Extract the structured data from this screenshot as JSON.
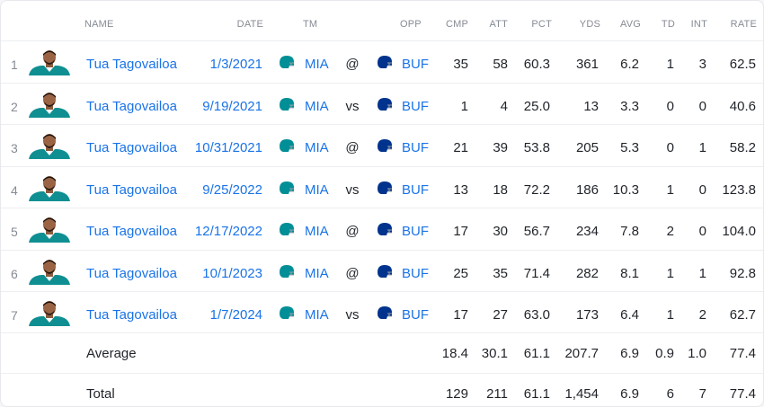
{
  "headers": {
    "name": "NAME",
    "date": "DATE",
    "tm": "TM",
    "opp": "OPP",
    "cmp": "CMP",
    "att": "ATT",
    "pct": "PCT",
    "yds": "YDS",
    "avg": "AVG",
    "td": "TD",
    "int": "INT",
    "rate": "RATE"
  },
  "colors": {
    "link": "#1a73e8",
    "mia": "#008e97",
    "buf": "#00338d"
  },
  "icons": {
    "player": "player-headshot-icon",
    "mia": "dolphins-helmet-icon",
    "buf": "bills-helmet-icon"
  },
  "rows": [
    {
      "rank": "1",
      "name": "Tua Tagovailoa",
      "date": "1/3/2021",
      "tm": "MIA",
      "loc": "@",
      "opp": "BUF",
      "cmp": "35",
      "att": "58",
      "pct": "60.3",
      "yds": "361",
      "avg": "6.2",
      "td": "1",
      "int": "3",
      "rate": "62.5"
    },
    {
      "rank": "2",
      "name": "Tua Tagovailoa",
      "date": "9/19/2021",
      "tm": "MIA",
      "loc": "vs",
      "opp": "BUF",
      "cmp": "1",
      "att": "4",
      "pct": "25.0",
      "yds": "13",
      "avg": "3.3",
      "td": "0",
      "int": "0",
      "rate": "40.6"
    },
    {
      "rank": "3",
      "name": "Tua Tagovailoa",
      "date": "10/31/2021",
      "tm": "MIA",
      "loc": "@",
      "opp": "BUF",
      "cmp": "21",
      "att": "39",
      "pct": "53.8",
      "yds": "205",
      "avg": "5.3",
      "td": "0",
      "int": "1",
      "rate": "58.2"
    },
    {
      "rank": "4",
      "name": "Tua Tagovailoa",
      "date": "9/25/2022",
      "tm": "MIA",
      "loc": "vs",
      "opp": "BUF",
      "cmp": "13",
      "att": "18",
      "pct": "72.2",
      "yds": "186",
      "avg": "10.3",
      "td": "1",
      "int": "0",
      "rate": "123.8"
    },
    {
      "rank": "5",
      "name": "Tua Tagovailoa",
      "date": "12/17/2022",
      "tm": "MIA",
      "loc": "@",
      "opp": "BUF",
      "cmp": "17",
      "att": "30",
      "pct": "56.7",
      "yds": "234",
      "avg": "7.8",
      "td": "2",
      "int": "0",
      "rate": "104.0"
    },
    {
      "rank": "6",
      "name": "Tua Tagovailoa",
      "date": "10/1/2023",
      "tm": "MIA",
      "loc": "@",
      "opp": "BUF",
      "cmp": "25",
      "att": "35",
      "pct": "71.4",
      "yds": "282",
      "avg": "8.1",
      "td": "1",
      "int": "1",
      "rate": "92.8"
    },
    {
      "rank": "7",
      "name": "Tua Tagovailoa",
      "date": "1/7/2024",
      "tm": "MIA",
      "loc": "vs",
      "opp": "BUF",
      "cmp": "17",
      "att": "27",
      "pct": "63.0",
      "yds": "173",
      "avg": "6.4",
      "td": "1",
      "int": "2",
      "rate": "62.7"
    }
  ],
  "average": {
    "label": "Average",
    "cmp": "18.4",
    "att": "30.1",
    "pct": "61.1",
    "yds": "207.7",
    "avg": "6.9",
    "td": "0.9",
    "int": "1.0",
    "rate": "77.4"
  },
  "total": {
    "label": "Total",
    "cmp": "129",
    "att": "211",
    "pct": "61.1",
    "yds": "1,454",
    "avg": "6.9",
    "td": "6",
    "int": "7",
    "rate": "77.4"
  }
}
